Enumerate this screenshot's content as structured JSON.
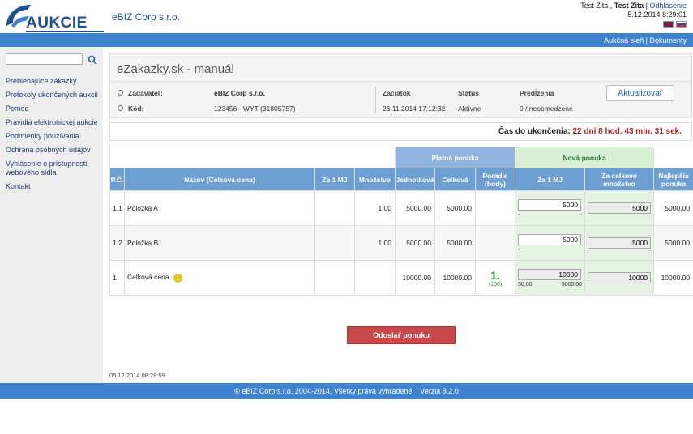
{
  "header": {
    "logo_text": "AUKCIE",
    "company": "eBIZ Corp s.r.o.",
    "user_name": "Test Zita ,",
    "user_bold": "Test Zita",
    "separator": "|",
    "logout": "Odhlásenie",
    "datetime": "5.12.2014 8:29:01"
  },
  "topbar": {
    "link1": "Aukčná sieň",
    "sep": "|",
    "link2": "Dokumenty"
  },
  "sidebar": {
    "search": {
      "value": "",
      "placeholder": ""
    },
    "items": [
      "Prebiehajúce zákazky",
      "Protokoly ukončených aukcií",
      "Pomoc",
      "Pravidlá elektronickej aukcie",
      "Podmienky používania",
      "Ochrana osobných údajov",
      "Vyhlásenie o prístupnosti webového sídla",
      "Kontakt"
    ]
  },
  "auction": {
    "title": "eZakazky.sk - manuál",
    "zadavatel_label": "Zadávateľ:",
    "zadavatel_value": "eBIZ Corp s.r.o.",
    "kod_label": "Kód:",
    "kod_value": "123456 - WYT  (31805757)",
    "zaciatok_label": "Začiatok",
    "zaciatok_value": "26.11.2014 17:12:32",
    "status_label": "Status",
    "status_value": "Aktívne",
    "predlzenia_label": "Predĺženia",
    "predlzenia_value": "0 / neobmedzené",
    "refresh_button": "Aktualizovať",
    "time_label": "Čas do ukončenia:",
    "time_remaining": "22 dní 8 hod. 43 min. 31 sek."
  },
  "table": {
    "group_valid": "Platná ponuka",
    "group_new": "Nová ponuka",
    "headers": {
      "pc": "P.Č.",
      "name": "Názov (Celková cena)",
      "per_mj": "Za 1 MJ",
      "qty": "Množstvo",
      "unit": "Jednotková",
      "total": "Celková",
      "rank": "Poradie (body)",
      "new_per_mj": "Za 1 MJ",
      "new_total_qty": "Za celkové množstvo",
      "best": "Najlepšia ponuka"
    },
    "rows": [
      {
        "pc": "1.1",
        "name": "Položka A",
        "per_mj": "",
        "qty": "1.00",
        "unit": "5000.00",
        "total": "5000.00",
        "rank": "",
        "rank_pts": "",
        "new_mj": "5000",
        "new_total": "5000",
        "mini_left": "-",
        "mini_right": "-",
        "best": "5000.00"
      },
      {
        "pc": "1.2",
        "name": "Položka B",
        "per_mj": "",
        "qty": "1.00",
        "unit": "5000.00",
        "total": "5000.00",
        "rank": "",
        "rank_pts": "",
        "new_mj": "5000",
        "new_total": "5000",
        "mini_left": "-",
        "mini_right": "",
        "best": "5000.00"
      },
      {
        "pc": "1",
        "name": "Celková cena",
        "per_mj": "",
        "qty": "",
        "unit": "10000.00",
        "total": "10000.00",
        "rank": "1.",
        "rank_pts": "(100)",
        "new_mj": "10000",
        "new_total": "10000",
        "mini_left": "50.00",
        "mini_right": "5000.00",
        "best": "10000.00"
      }
    ]
  },
  "send_button": "Odoslať ponuku",
  "timestamp": "05.12.2014 08:28:59",
  "footer": "© eBIZ Corp s.r.o. 2004-2014, Všetky práva vyhradené. | Verzia 8.2.0",
  "colors": {
    "brand_blue": "#3f83cf",
    "header_blue": "#6e9fd2",
    "new_offer_green": "#d9efd6",
    "send_red": "#c9494a"
  }
}
